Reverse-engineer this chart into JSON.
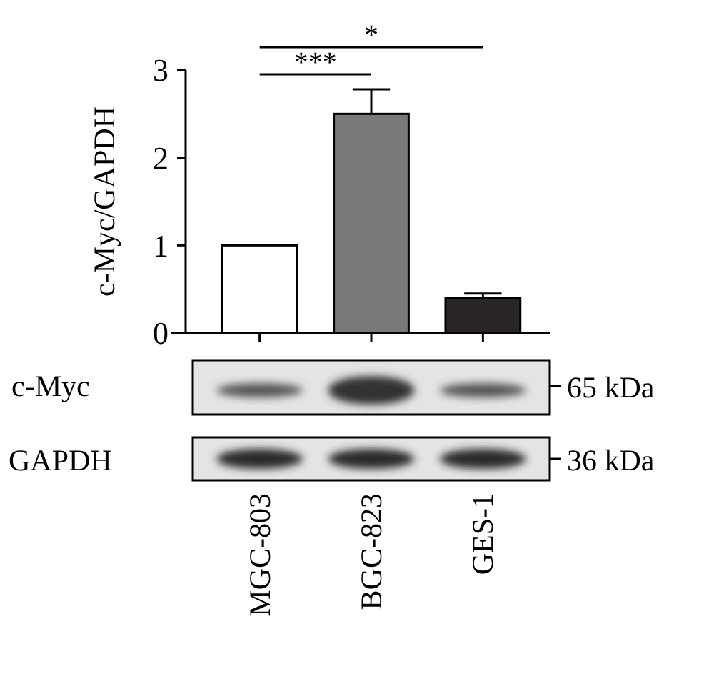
{
  "chart_data": {
    "type": "bar",
    "ylabel": "c-Myc/GAPDH",
    "categories": [
      "MGC-803",
      "BGC-823",
      "GES-1"
    ],
    "values": [
      1,
      2.5,
      0.4
    ],
    "colors": [
      "#ffffff",
      "#7a787b",
      "#2a2627"
    ],
    "errors": [
      null,
      [
        2.5,
        2.78
      ],
      [
        0.4,
        0.45
      ]
    ],
    "ylim": [
      0,
      3
    ],
    "yticks": [
      0,
      1,
      2,
      3
    ],
    "annotations": [
      "***",
      "*",
      "c-Myc",
      "65 kDa",
      "GAPDH",
      "36 kDa"
    ]
  }
}
